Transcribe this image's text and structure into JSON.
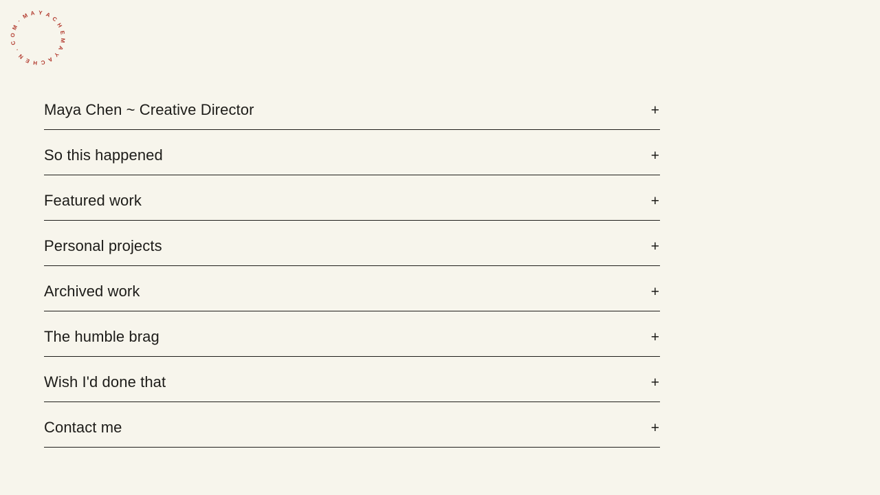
{
  "page": {
    "background": "#f7f5ec",
    "text_color": "#1d1c19",
    "accent_red": "#b23a2e"
  },
  "logo": {
    "text": "·MAYACHEMAYACHEN.COM",
    "start_angle": -48,
    "step_angle": 18,
    "radius": 36
  },
  "menu": {
    "expand_glyph": "+",
    "items": [
      {
        "label": "Maya Chen ~ Creative Director"
      },
      {
        "label": "So this happened"
      },
      {
        "label": "Featured work"
      },
      {
        "label": "Personal projects"
      },
      {
        "label": "Archived work"
      },
      {
        "label": "The humble brag"
      },
      {
        "label": "Wish I'd done that"
      },
      {
        "label": "Contact me"
      }
    ]
  }
}
